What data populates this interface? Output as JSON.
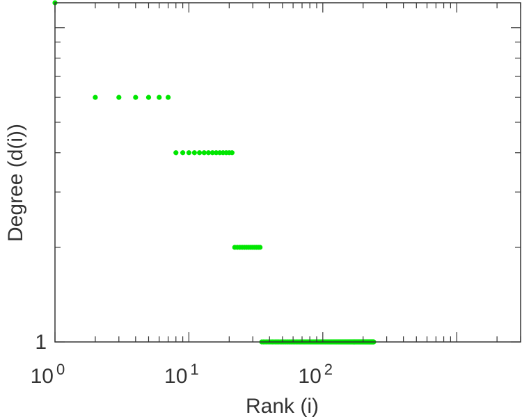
{
  "chart_data": {
    "type": "scatter",
    "title": "",
    "xlabel": "Rank (i)",
    "ylabel": "Degree (d(i))",
    "x_scale": "log",
    "y_scale": "log",
    "xlim": [
      1,
      3000
    ],
    "ylim": [
      1,
      12
    ],
    "x_tick_labels": [
      {
        "value": 1,
        "base": "10",
        "exp": "0"
      },
      {
        "value": 10,
        "base": "10",
        "exp": "1"
      },
      {
        "value": 100,
        "base": "10",
        "exp": "2"
      }
    ],
    "y_tick_labels": [
      {
        "value": 1,
        "label": "1"
      }
    ],
    "grid": false,
    "marker_color": "#00e600",
    "series": [
      {
        "groups": [
          {
            "y": 12,
            "x_start": 1,
            "x_end": 1
          },
          {
            "y": 6,
            "x_start": 2,
            "x_end": 7
          },
          {
            "y": 4,
            "x_start": 8,
            "x_end": 21
          },
          {
            "y": 2,
            "x_start": 22,
            "x_end": 34
          },
          {
            "y": 1,
            "x_start": 35,
            "x_end": 240
          }
        ]
      }
    ]
  }
}
